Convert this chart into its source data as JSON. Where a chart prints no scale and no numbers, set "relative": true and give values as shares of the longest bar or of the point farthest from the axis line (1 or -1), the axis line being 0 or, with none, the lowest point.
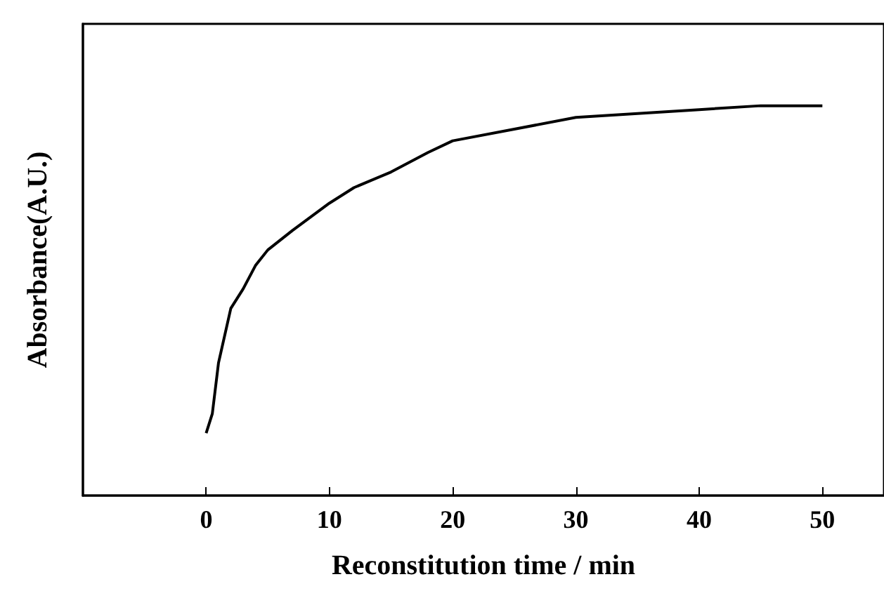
{
  "chart_data": {
    "type": "line",
    "xlabel": "Reconstitution time / min",
    "ylabel": "Absorbance(A.U.)",
    "relative": true,
    "xlim": [
      -10,
      55
    ],
    "xticks": [
      0,
      10,
      20,
      30,
      40,
      50
    ],
    "grid": false,
    "marker": "none",
    "line_style": "solid",
    "x": [
      0,
      0.5,
      1,
      2,
      3,
      4,
      5,
      7,
      10,
      12,
      15,
      18,
      20,
      25,
      30,
      35,
      40,
      45,
      50
    ],
    "series": [
      {
        "color": "#000000",
        "values": [
          0.16,
          0.21,
          0.34,
          0.48,
          0.53,
          0.59,
          0.63,
          0.68,
          0.75,
          0.79,
          0.83,
          0.88,
          0.91,
          0.94,
          0.97,
          0.98,
          0.99,
          1.0,
          1.0
        ]
      }
    ]
  }
}
